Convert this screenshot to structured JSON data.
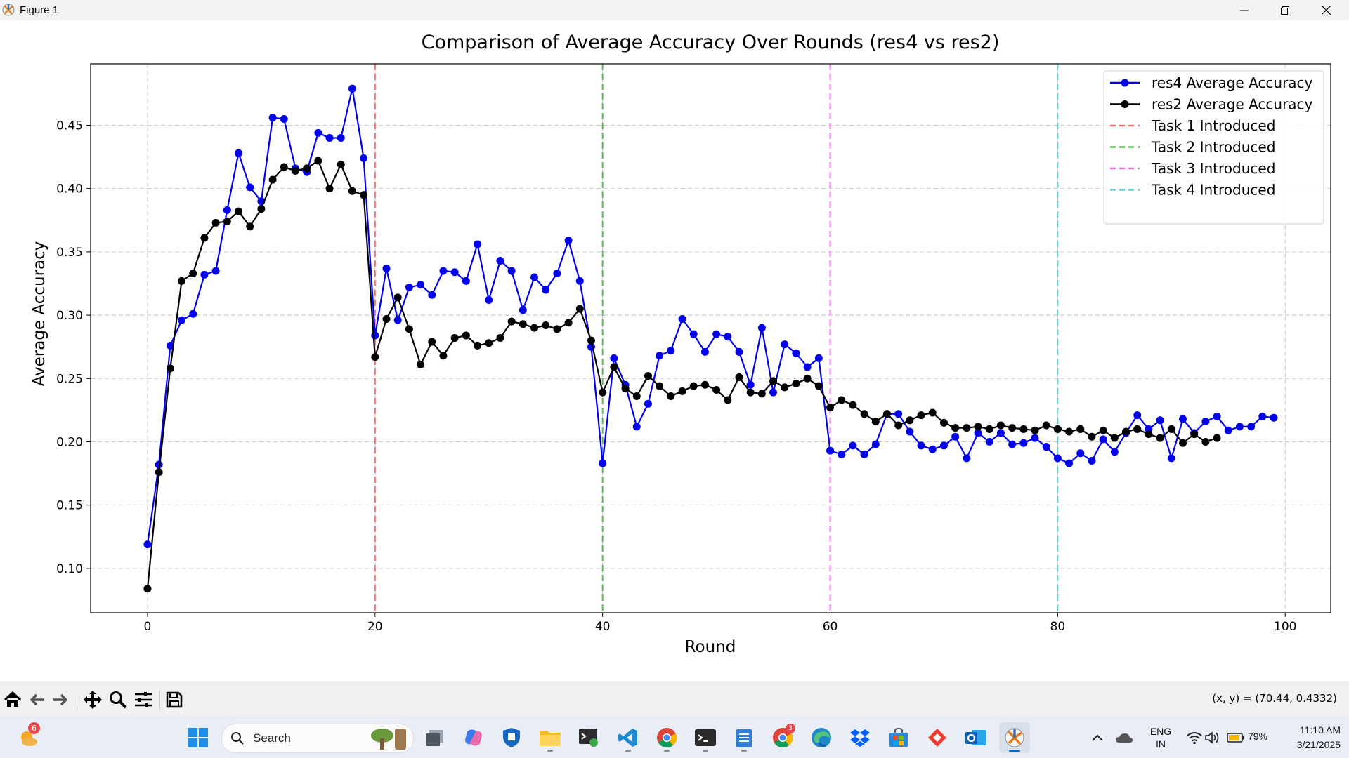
{
  "window": {
    "title": "Figure 1"
  },
  "chart_data": {
    "type": "line",
    "title": "Comparison of Average Accuracy Over Rounds (res4 vs res2)",
    "xlabel": "Round",
    "ylabel": "Average Accuracy",
    "xlim": [
      -5,
      104
    ],
    "ylim": [
      0.065,
      0.4985
    ],
    "xticks": [
      0,
      20,
      40,
      60,
      80,
      100
    ],
    "yticks": [
      0.1,
      0.15,
      0.2,
      0.25,
      0.3,
      0.35,
      0.4,
      0.45
    ],
    "grid": true,
    "legend_position": "top-right",
    "series": [
      {
        "name": "res4 Average Accuracy",
        "color": "#0000ee",
        "x_start": 0,
        "values": [
          0.119,
          0.182,
          0.276,
          0.296,
          0.301,
          0.332,
          0.335,
          0.383,
          0.428,
          0.401,
          0.39,
          0.456,
          0.455,
          0.416,
          0.413,
          0.444,
          0.44,
          0.44,
          0.479,
          0.424,
          0.284,
          0.337,
          0.296,
          0.322,
          0.324,
          0.316,
          0.335,
          0.334,
          0.327,
          0.356,
          0.312,
          0.343,
          0.335,
          0.304,
          0.33,
          0.32,
          0.333,
          0.359,
          0.327,
          0.275,
          0.183,
          0.266,
          0.245,
          0.212,
          0.23,
          0.268,
          0.272,
          0.297,
          0.285,
          0.271,
          0.285,
          0.283,
          0.271,
          0.245,
          0.29,
          0.239,
          0.277,
          0.27,
          0.259,
          0.266,
          0.193,
          0.19,
          0.197,
          0.19,
          0.198,
          0.222,
          0.222,
          0.208,
          0.197,
          0.194,
          0.197,
          0.204,
          0.187,
          0.207,
          0.2,
          0.207,
          0.198,
          0.199,
          0.203,
          0.196,
          0.187,
          0.183,
          0.191,
          0.185,
          0.202,
          0.192,
          0.207,
          0.221,
          0.21,
          0.217,
          0.187,
          0.218,
          0.207,
          0.216,
          0.22,
          0.209,
          0.212,
          0.212,
          0.22,
          0.219
        ]
      },
      {
        "name": "res2 Average Accuracy",
        "color": "#000000",
        "x_start": 0,
        "values": [
          0.084,
          0.176,
          0.258,
          0.327,
          0.333,
          0.361,
          0.373,
          0.374,
          0.382,
          0.37,
          0.384,
          0.407,
          0.417,
          0.414,
          0.416,
          0.422,
          0.4,
          0.419,
          0.398,
          0.395,
          0.267,
          0.297,
          0.314,
          0.289,
          0.261,
          0.279,
          0.268,
          0.282,
          0.284,
          0.276,
          0.278,
          0.282,
          0.295,
          0.293,
          0.29,
          0.292,
          0.289,
          0.294,
          0.305,
          0.28,
          0.239,
          0.259,
          0.242,
          0.236,
          0.252,
          0.244,
          0.236,
          0.24,
          0.244,
          0.245,
          0.241,
          0.233,
          0.251,
          0.239,
          0.238,
          0.248,
          0.243,
          0.246,
          0.25,
          0.244,
          0.227,
          0.233,
          0.229,
          0.222,
          0.216,
          0.222,
          0.213,
          0.217,
          0.221,
          0.223,
          0.215,
          0.211,
          0.211,
          0.212,
          0.21,
          0.213,
          0.211,
          0.21,
          0.209,
          0.213,
          0.21,
          0.208,
          0.21,
          0.204,
          0.209,
          0.203,
          0.208,
          0.21,
          0.206,
          0.203,
          0.21,
          0.199,
          0.206,
          0.2,
          0.203
        ]
      }
    ],
    "vlines": [
      {
        "name": "Task 1 Introduced",
        "x": 20,
        "color": "#f07070"
      },
      {
        "name": "Task 2 Introduced",
        "x": 40,
        "color": "#5cb85c"
      },
      {
        "name": "Task 3 Introduced",
        "x": 60,
        "color": "#e070e0"
      },
      {
        "name": "Task 4 Introduced",
        "x": 80,
        "color": "#5fd3d3"
      }
    ]
  },
  "toolbar": {
    "coords": "(x, y) = (70.44, 0.4332)",
    "buttons": [
      "home-icon",
      "back-icon",
      "forward-icon",
      "pan-icon",
      "zoom-icon",
      "configure-icon",
      "save-icon"
    ]
  },
  "taskbar": {
    "search_label": "Search",
    "weather_badge": "6",
    "chrome_badge": "3",
    "lang_line1": "ENG",
    "lang_line2": "IN",
    "battery": "79%",
    "time": "11:10 AM",
    "date": "3/21/2025"
  }
}
